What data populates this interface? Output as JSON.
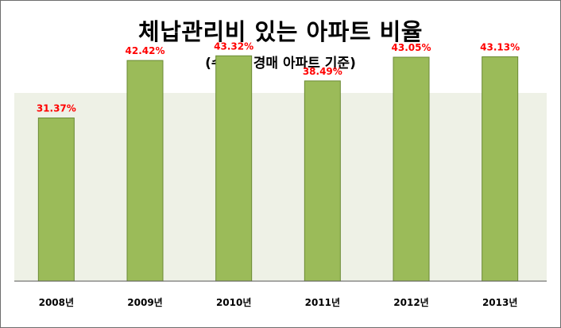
{
  "chart_data": {
    "type": "bar",
    "title": "체납관리비 있는 아파트 비율",
    "subtitle": "(수도권 경매 아파트 기준)",
    "categories": [
      "2008년",
      "2009년",
      "2010년",
      "2011년",
      "2012년",
      "2013년"
    ],
    "values": [
      31.37,
      42.42,
      43.32,
      38.49,
      43.05,
      43.13
    ],
    "data_labels": [
      "31.37%",
      "42.42%",
      "43.32%",
      "38.49%",
      "43.05%",
      "43.13%"
    ],
    "ylim": [
      0,
      50
    ],
    "grid": false,
    "legend": "none",
    "xlabel": "",
    "ylabel": "",
    "colors": {
      "bar": "#9bbb59",
      "bar_border": "#6b8a35",
      "plot_background": "#eef1e6",
      "data_label": "#ff0000",
      "axis": "#555555"
    }
  }
}
